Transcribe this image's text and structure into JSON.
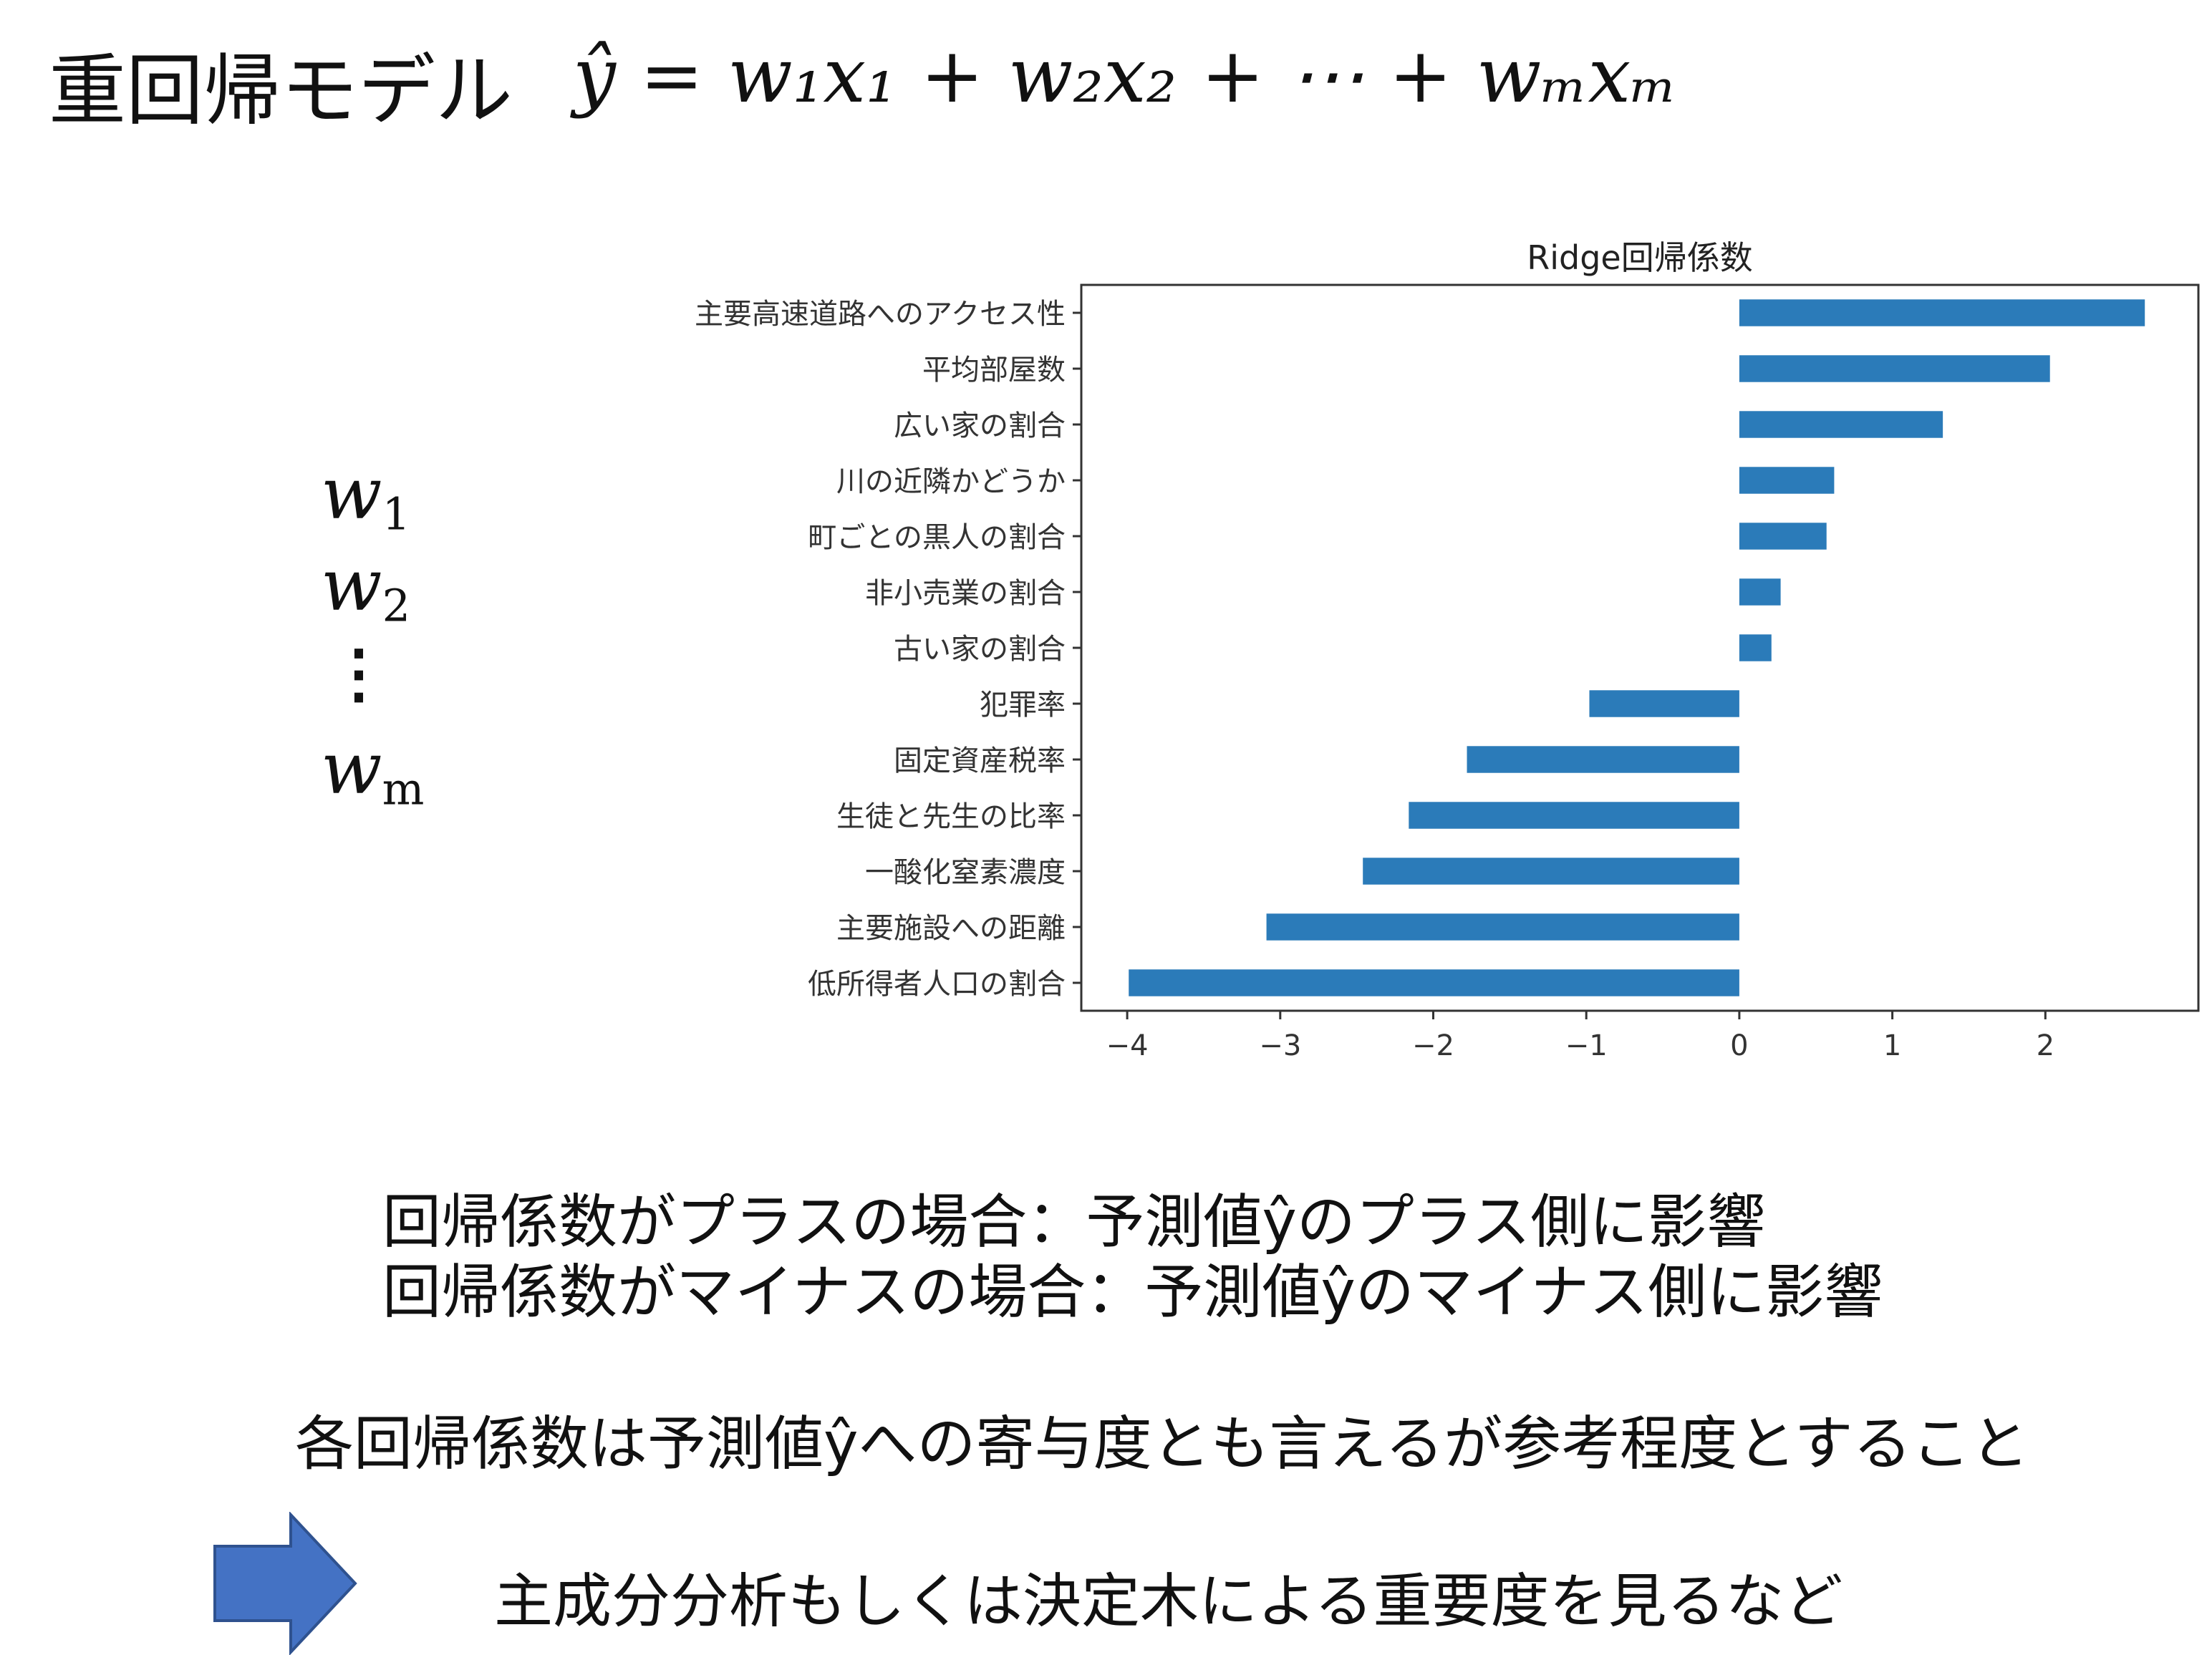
{
  "title": "重回帰モデル",
  "formula": "ŷ = w₁x₁ + w₂x₂ + ⋯ + wₘxₘ",
  "weights": {
    "w1": "w",
    "w1_sub": "1",
    "w2": "w",
    "w2_sub": "2",
    "dots": "⋮",
    "wm": "w",
    "wm_sub": "m"
  },
  "chart_data": {
    "type": "bar",
    "orientation": "horizontal",
    "title": "Ridge回帰係数",
    "categories": [
      "主要高速道路へのアクセス性",
      "平均部屋数",
      "広い家の割合",
      "川の近隣かどうか",
      "町ごとの黒人の割合",
      "非小売業の割合",
      "古い家の割合",
      "犯罪率",
      "固定資産税率",
      "生徒と先生の比率",
      "一酸化窒素濃度",
      "主要施設への距離",
      "低所得者人口の割合"
    ],
    "values": [
      2.65,
      2.03,
      1.33,
      0.62,
      0.57,
      0.27,
      0.21,
      -0.98,
      -1.78,
      -2.16,
      -2.46,
      -3.09,
      -3.99
    ],
    "xlim": [
      -4.3,
      3.0
    ],
    "xticks": [
      -4,
      -3,
      -2,
      -1,
      0,
      1,
      2
    ],
    "xtick_labels": [
      "−4",
      "−3",
      "−2",
      "−1",
      "0",
      "1",
      "2"
    ],
    "bar_color": "#2b7bb9",
    "grid": false
  },
  "notes": {
    "positive": "回帰係数がプラスの場合：予測値ŷのプラス側に影響",
    "negative": "回帰係数がマイナスの場合：予測値ŷのマイナス側に影響",
    "caution": "各回帰係数は予測値ŷへの寄与度とも言えるが参考程度とすること",
    "suggestion": "主成分分析もしくは決定木による重要度を見るなど"
  },
  "colors": {
    "arrow": "#4472c4",
    "arrow_border": "#2f528f"
  }
}
